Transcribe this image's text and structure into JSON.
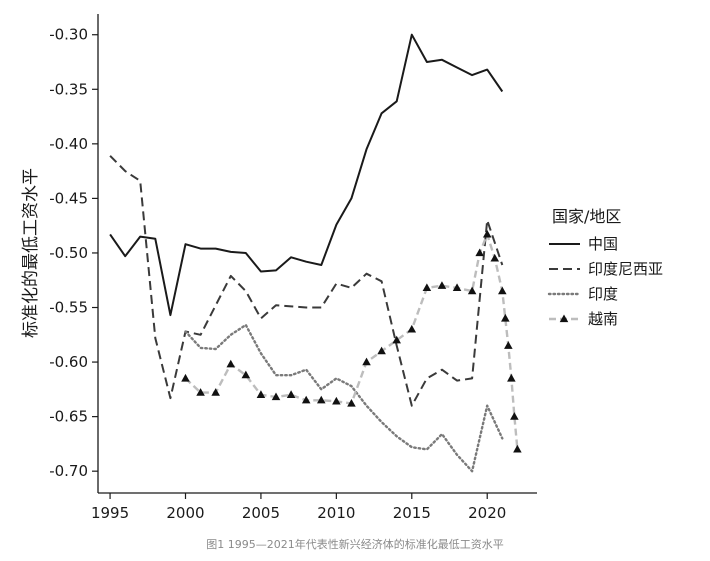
{
  "caption": "图1 1995—2021年代表性新兴经济体的标准化最低工资水平",
  "chart_data": {
    "type": "line",
    "ylabel": "标准化的最低工资水平",
    "xlabel": "",
    "xlim": [
      1994.2,
      2023.3
    ],
    "ylim": [
      -0.72,
      -0.281
    ],
    "x_ticks": [
      1995,
      2000,
      2005,
      2010,
      2015,
      2020
    ],
    "x_tick_labels": [
      "1995",
      "2000",
      "2005",
      "2010",
      "2015",
      "2020"
    ],
    "y_ticks": [
      -0.3,
      -0.35,
      -0.4,
      -0.45,
      -0.5,
      -0.55,
      -0.6,
      -0.65,
      -0.7
    ],
    "y_tick_labels": [
      "-0.30",
      "-0.35",
      "-0.40",
      "-0.45",
      "-0.50",
      "-0.55",
      "-0.60",
      "-0.65",
      "-0.70"
    ],
    "grid": false,
    "legend": {
      "title": "国家/地区",
      "position": "right"
    },
    "series": [
      {
        "name": "中国",
        "style": "solid",
        "color": "#1a1a1a",
        "x": [
          1995,
          1996,
          1997,
          1998,
          1999,
          2000,
          2001,
          2002,
          2003,
          2004,
          2005,
          2006,
          2007,
          2008,
          2009,
          2010,
          2011,
          2012,
          2013,
          2014,
          2015,
          2016,
          2017,
          2018,
          2019,
          2020,
          2021
        ],
        "y": [
          -0.483,
          -0.503,
          -0.485,
          -0.487,
          -0.557,
          -0.492,
          -0.496,
          -0.496,
          -0.499,
          -0.5,
          -0.517,
          -0.516,
          -0.504,
          -0.508,
          -0.511,
          -0.474,
          -0.45,
          -0.405,
          -0.372,
          -0.361,
          -0.3,
          -0.325,
          -0.323,
          -0.33,
          -0.337,
          -0.332,
          -0.352
        ]
      },
      {
        "name": "印度尼西亚",
        "style": "dashed",
        "color": "#3a3a3a",
        "x": [
          1995,
          1996,
          1997,
          1998,
          1999,
          2000,
          2001,
          2002,
          2003,
          2004,
          2005,
          2006,
          2007,
          2008,
          2009,
          2010,
          2011,
          2012,
          2013,
          2014,
          2015,
          2016,
          2017,
          2018,
          2019,
          2020,
          2021
        ],
        "y": [
          -0.411,
          -0.425,
          -0.434,
          -0.578,
          -0.633,
          -0.572,
          -0.575,
          -0.548,
          -0.521,
          -0.535,
          -0.56,
          -0.548,
          -0.549,
          -0.55,
          -0.55,
          -0.528,
          -0.532,
          -0.519,
          -0.526,
          -0.585,
          -0.64,
          -0.615,
          -0.607,
          -0.617,
          -0.615,
          -0.47,
          -0.511
        ]
      },
      {
        "name": "印度",
        "style": "dotted",
        "color": "#7a7a7a",
        "x": [
          2000,
          2001,
          2002,
          2003,
          2004,
          2005,
          2006,
          2007,
          2008,
          2009,
          2010,
          2011,
          2012,
          2013,
          2014,
          2015,
          2016,
          2017,
          2018,
          2019,
          2020,
          2021
        ],
        "y": [
          -0.572,
          -0.587,
          -0.588,
          -0.575,
          -0.566,
          -0.592,
          -0.612,
          -0.612,
          -0.607,
          -0.625,
          -0.615,
          -0.622,
          -0.64,
          -0.655,
          -0.668,
          -0.678,
          -0.68,
          -0.666,
          -0.685,
          -0.7,
          -0.64,
          -0.67
        ]
      },
      {
        "name": "越南",
        "style": "dashed-triangle",
        "color": "#bdbdbd",
        "marker_color": "#111111",
        "x": [
          2000,
          2001,
          2002,
          2003,
          2004,
          2005,
          2006,
          2007,
          2008,
          2009,
          2010,
          2011,
          2012,
          2013,
          2014,
          2015,
          2016,
          2017,
          2018,
          2019,
          2019.5,
          2020,
          2020.5,
          2021,
          2021.2,
          2021.4,
          2021.6,
          2021.8,
          2022
        ],
        "y": [
          -0.615,
          -0.628,
          -0.628,
          -0.602,
          -0.612,
          -0.63,
          -0.632,
          -0.63,
          -0.635,
          -0.635,
          -0.636,
          -0.638,
          -0.6,
          -0.59,
          -0.58,
          -0.57,
          -0.532,
          -0.53,
          -0.532,
          -0.535,
          -0.5,
          -0.483,
          -0.505,
          -0.535,
          -0.56,
          -0.585,
          -0.615,
          -0.65,
          -0.68
        ]
      }
    ]
  }
}
